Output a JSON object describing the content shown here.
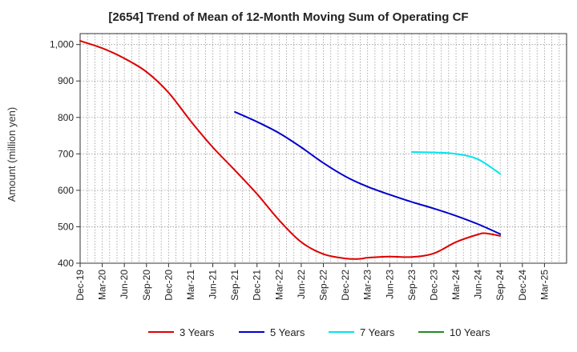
{
  "chart_data": {
    "type": "line",
    "title": "[2654]  Trend of Mean of 12-Month Moving Sum of Operating CF",
    "xlabel": "",
    "ylabel": "Amount (million yen)",
    "ylim": [
      400,
      1030
    ],
    "yticks": [
      400,
      500,
      600,
      700,
      800,
      900,
      1000
    ],
    "ytick_labels": [
      "400",
      "500",
      "600",
      "700",
      "800",
      "900",
      "1,000"
    ],
    "x_range": [
      0,
      66
    ],
    "grid": true,
    "legend_position": "bottom",
    "xticks": [
      {
        "i": 0,
        "label": "Dec-19"
      },
      {
        "i": 3,
        "label": "Mar-20"
      },
      {
        "i": 6,
        "label": "Jun-20"
      },
      {
        "i": 9,
        "label": "Sep-20"
      },
      {
        "i": 12,
        "label": "Dec-20"
      },
      {
        "i": 15,
        "label": "Mar-21"
      },
      {
        "i": 18,
        "label": "Jun-21"
      },
      {
        "i": 21,
        "label": "Sep-21"
      },
      {
        "i": 24,
        "label": "Dec-21"
      },
      {
        "i": 27,
        "label": "Mar-22"
      },
      {
        "i": 30,
        "label": "Jun-22"
      },
      {
        "i": 33,
        "label": "Sep-22"
      },
      {
        "i": 36,
        "label": "Dec-22"
      },
      {
        "i": 39,
        "label": "Mar-23"
      },
      {
        "i": 42,
        "label": "Jun-23"
      },
      {
        "i": 45,
        "label": "Sep-23"
      },
      {
        "i": 48,
        "label": "Dec-23"
      },
      {
        "i": 51,
        "label": "Mar-24"
      },
      {
        "i": 54,
        "label": "Jun-24"
      },
      {
        "i": 57,
        "label": "Sep-24"
      },
      {
        "i": 60,
        "label": "Dec-24"
      },
      {
        "i": 63,
        "label": "Mar-25"
      }
    ],
    "series": [
      {
        "name": "3 Years",
        "color": "#dd0000",
        "points": [
          [
            0,
            1010
          ],
          [
            3,
            990
          ],
          [
            6,
            962
          ],
          [
            9,
            925
          ],
          [
            12,
            868
          ],
          [
            15,
            790
          ],
          [
            18,
            718
          ],
          [
            21,
            655
          ],
          [
            24,
            590
          ],
          [
            27,
            518
          ],
          [
            30,
            458
          ],
          [
            33,
            425
          ],
          [
            36,
            413
          ],
          [
            38,
            412
          ],
          [
            39,
            415
          ],
          [
            42,
            418
          ],
          [
            45,
            417
          ],
          [
            48,
            427
          ],
          [
            51,
            458
          ],
          [
            54,
            479
          ],
          [
            55,
            482
          ],
          [
            57,
            475
          ]
        ]
      },
      {
        "name": "5 Years",
        "color": "#0000cc",
        "points": [
          [
            21,
            815
          ],
          [
            24,
            788
          ],
          [
            27,
            757
          ],
          [
            30,
            718
          ],
          [
            33,
            675
          ],
          [
            36,
            638
          ],
          [
            39,
            610
          ],
          [
            42,
            588
          ],
          [
            45,
            568
          ],
          [
            48,
            550
          ],
          [
            51,
            530
          ],
          [
            54,
            507
          ],
          [
            57,
            480
          ]
        ]
      },
      {
        "name": "7 Years",
        "color": "#00e5ee",
        "points": [
          [
            45,
            705
          ],
          [
            48,
            704
          ],
          [
            51,
            700
          ],
          [
            54,
            685
          ],
          [
            57,
            645
          ]
        ]
      },
      {
        "name": "10 Years",
        "color": "#228b22",
        "points": []
      }
    ]
  }
}
